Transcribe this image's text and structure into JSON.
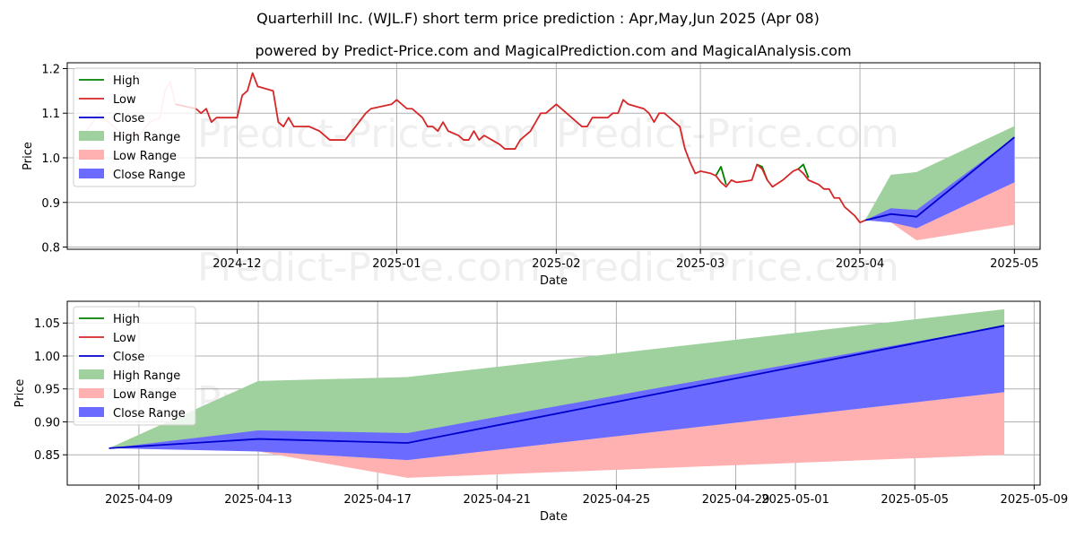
{
  "title": "Quarterhill Inc. (WJL.F) short term price prediction : Apr,May,Jun 2025 (Apr 08)",
  "subtitle": "powered by Predict-Price.com and MagicalPrediction.com and MagicalAnalysis.com",
  "watermark": "Predict-Price.com",
  "colors": {
    "high": "#008000",
    "low": "#d62728",
    "close": "#0000cc",
    "high_range": "#9fd19f",
    "low_range": "#ffb0b0",
    "close_range": "#6b6bff",
    "grid": "#b0b0b0"
  },
  "chart_data": [
    {
      "type": "line",
      "name": "history-and-forecast",
      "xlabel": "Date",
      "ylabel": "Price",
      "x_ticks": [
        "2024-12",
        "2025-01",
        "2025-02",
        "2025-03",
        "2025-04",
        "2025-05"
      ],
      "x_tick_days": [
        30,
        61,
        92,
        120,
        151,
        181
      ],
      "y_ticks": [
        "0.8",
        "0.9",
        "1.0",
        "1.1",
        "1.2"
      ],
      "y_tick_values": [
        0.8,
        0.9,
        1.0,
        1.1,
        1.2
      ],
      "xlim": [
        -3,
        186
      ],
      "ylim": [
        0.795,
        1.213
      ],
      "grid": true,
      "legend": [
        "High",
        "Low",
        "Close",
        "High Range",
        "Low Range",
        "Close Range"
      ],
      "legend_position": "top-left",
      "history_low": [
        [
          0,
          1.05
        ],
        [
          2,
          1.08
        ],
        [
          3,
          1.1
        ],
        [
          5,
          1.08
        ],
        [
          7,
          1.06
        ],
        [
          9,
          1.05
        ],
        [
          11,
          1.05
        ],
        [
          13,
          1.08
        ],
        [
          15,
          1.09
        ],
        [
          16,
          1.15
        ],
        [
          17,
          1.17
        ],
        [
          18,
          1.12
        ],
        [
          20,
          1.115
        ],
        [
          22,
          1.11
        ],
        [
          23,
          1.1
        ],
        [
          24,
          1.11
        ],
        [
          25,
          1.08
        ],
        [
          26,
          1.09
        ],
        [
          28,
          1.09
        ],
        [
          30,
          1.09
        ],
        [
          31,
          1.14
        ],
        [
          32,
          1.15
        ],
        [
          33,
          1.19
        ],
        [
          34,
          1.16
        ],
        [
          37,
          1.15
        ],
        [
          38,
          1.08
        ],
        [
          39,
          1.07
        ],
        [
          40,
          1.09
        ],
        [
          41,
          1.07
        ],
        [
          44,
          1.07
        ],
        [
          46,
          1.06
        ],
        [
          48,
          1.04
        ],
        [
          51,
          1.04
        ],
        [
          53,
          1.07
        ],
        [
          55,
          1.1
        ],
        [
          56,
          1.11
        ],
        [
          58,
          1.115
        ],
        [
          60,
          1.12
        ],
        [
          61,
          1.13
        ],
        [
          63,
          1.11
        ],
        [
          64,
          1.11
        ],
        [
          66,
          1.09
        ],
        [
          67,
          1.07
        ],
        [
          68,
          1.07
        ],
        [
          69,
          1.06
        ],
        [
          70,
          1.08
        ],
        [
          71,
          1.06
        ],
        [
          73,
          1.05
        ],
        [
          74,
          1.04
        ],
        [
          75,
          1.04
        ],
        [
          76,
          1.06
        ],
        [
          77,
          1.04
        ],
        [
          78,
          1.05
        ],
        [
          81,
          1.03
        ],
        [
          82,
          1.02
        ],
        [
          84,
          1.02
        ],
        [
          85,
          1.04
        ],
        [
          87,
          1.06
        ],
        [
          88,
          1.08
        ],
        [
          89,
          1.1
        ],
        [
          90,
          1.1
        ],
        [
          92,
          1.12
        ],
        [
          94,
          1.1
        ],
        [
          96,
          1.08
        ],
        [
          97,
          1.07
        ],
        [
          98,
          1.07
        ],
        [
          99,
          1.09
        ],
        [
          102,
          1.09
        ],
        [
          103,
          1.1
        ],
        [
          104,
          1.1
        ],
        [
          105,
          1.13
        ],
        [
          106,
          1.12
        ],
        [
          109,
          1.11
        ],
        [
          110,
          1.1
        ],
        [
          111,
          1.08
        ],
        [
          112,
          1.1
        ],
        [
          113,
          1.1
        ],
        [
          115,
          1.08
        ],
        [
          116,
          1.07
        ],
        [
          117,
          1.02
        ],
        [
          118,
          0.99
        ],
        [
          119,
          0.965
        ],
        [
          120,
          0.97
        ],
        [
          122,
          0.965
        ],
        [
          123,
          0.96
        ],
        [
          124,
          0.945
        ],
        [
          125,
          0.935
        ],
        [
          126,
          0.95
        ],
        [
          127,
          0.945
        ],
        [
          129,
          0.948
        ],
        [
          130,
          0.95
        ],
        [
          131,
          0.985
        ],
        [
          132,
          0.975
        ],
        [
          133,
          0.95
        ],
        [
          134,
          0.935
        ],
        [
          136,
          0.95
        ],
        [
          138,
          0.97
        ],
        [
          139,
          0.975
        ],
        [
          140,
          0.965
        ],
        [
          141,
          0.95
        ],
        [
          143,
          0.94
        ],
        [
          144,
          0.93
        ],
        [
          145,
          0.93
        ],
        [
          146,
          0.91
        ],
        [
          147,
          0.91
        ],
        [
          148,
          0.89
        ],
        [
          150,
          0.87
        ],
        [
          151,
          0.855
        ],
        [
          152,
          0.86
        ]
      ],
      "history_high": [
        [
          124,
          0.98
        ],
        [
          125,
          0.94
        ],
        [
          132,
          0.98
        ],
        [
          133,
          0.95
        ],
        [
          140,
          0.985
        ],
        [
          141,
          0.955
        ]
      ],
      "forecast_days": [
        152,
        157,
        162,
        181
      ],
      "forecast_high": [
        0.86,
        0.962,
        0.968,
        1.071
      ],
      "forecast_low": [
        0.86,
        0.855,
        0.815,
        0.85
      ],
      "forecast_close": [
        0.86,
        0.874,
        0.868,
        1.046
      ],
      "close_range_upper": [
        0.86,
        0.887,
        0.883,
        1.046
      ],
      "close_range_lower": [
        0.86,
        0.855,
        0.842,
        0.945
      ],
      "low_range_upper": [
        0.86,
        0.855,
        0.842,
        0.945
      ]
    },
    {
      "type": "line",
      "name": "forecast-zoom",
      "xlabel": "Date",
      "ylabel": "Price",
      "x_ticks": [
        "2025-04-09",
        "2025-04-13",
        "2025-04-17",
        "2025-04-21",
        "2025-04-25",
        "2025-04-29",
        "2025-05-01",
        "2025-05-05",
        "2025-05-09"
      ],
      "x_tick_days": [
        1,
        5,
        9,
        13,
        17,
        21,
        23,
        27,
        31
      ],
      "y_ticks": [
        "0.85",
        "0.90",
        "0.95",
        "1.00",
        "1.05"
      ],
      "y_tick_values": [
        0.85,
        0.9,
        0.95,
        1.0,
        1.05
      ],
      "xlim": [
        -1.4,
        31.2
      ],
      "ylim": [
        0.804,
        1.083
      ],
      "grid": true,
      "legend": [
        "High",
        "Low",
        "Close",
        "High Range",
        "Low Range",
        "Close Range"
      ],
      "legend_position": "top-left",
      "forecast_days": [
        0,
        5,
        10,
        30
      ],
      "forecast_high": [
        0.86,
        0.962,
        0.968,
        1.071
      ],
      "forecast_low": [
        0.86,
        0.855,
        0.815,
        0.85
      ],
      "forecast_close": [
        0.86,
        0.874,
        0.868,
        1.046
      ],
      "close_range_upper": [
        0.86,
        0.887,
        0.883,
        1.046
      ],
      "close_range_lower": [
        0.86,
        0.855,
        0.842,
        0.945
      ],
      "low_range_upper": [
        0.86,
        0.855,
        0.842,
        0.945
      ]
    }
  ]
}
